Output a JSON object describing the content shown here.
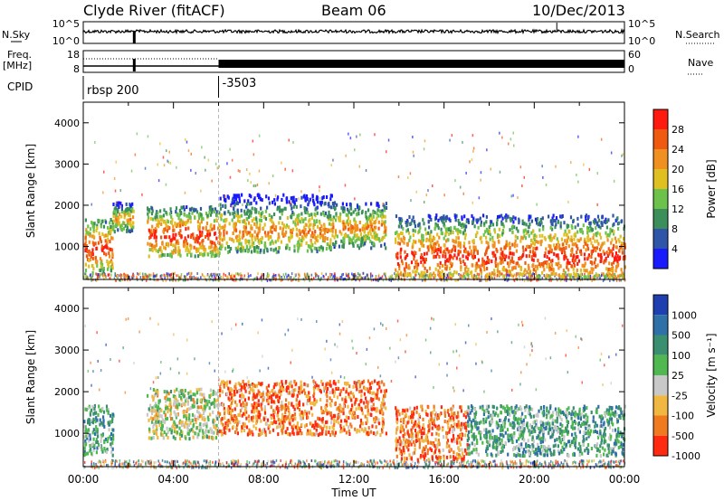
{
  "header": {
    "station": "Clyde River (fitACF)",
    "beam": "Beam 06",
    "date": "10/Dec/2013"
  },
  "top_panels": {
    "nsky_label": "N.Sky",
    "nsearch_label": "N.Search",
    "noise_ticks_left": [
      "10^5",
      "10^0"
    ],
    "noise_ticks_right": [
      "10^5",
      "10^0"
    ],
    "freq_label_1": "Freq.",
    "freq_label_2": "[MHz]",
    "freq_ticks": [
      "18",
      "8"
    ],
    "nave_ticks": [
      "60",
      "0"
    ],
    "nave_label": "Nave",
    "cpid_label": "CPID",
    "cpid_segments": [
      {
        "name": "rbsp 200",
        "start_hour": 0
      },
      {
        "name": "-3503",
        "start_hour": 6
      }
    ]
  },
  "chart_data": [
    {
      "type": "heatmap",
      "title": "",
      "parameter": "Power",
      "ylabel": "Slant Range [km]",
      "ylim": [
        200,
        4500
      ],
      "xlim": [
        0,
        24
      ],
      "y_ticks": [
        "1000",
        "2000",
        "3000",
        "4000"
      ],
      "colorbar": {
        "label": "Power [dB]",
        "tick_labels": [
          "4",
          "8",
          "12",
          "16",
          "20",
          "24",
          "28"
        ],
        "range": [
          0,
          32
        ],
        "colors": [
          "#1a1aff",
          "#2f55a8",
          "#3c8f5a",
          "#6cc24a",
          "#e0c020",
          "#f09020",
          "#f05a10",
          "#ff1a10"
        ]
      },
      "echo_regions": [
        {
          "t0": 0.0,
          "t1": 1.3,
          "r0": 400,
          "r1": 1700,
          "core": 1000,
          "level": "high"
        },
        {
          "t0": 1.3,
          "t1": 2.2,
          "r0": 1400,
          "r1": 2100,
          "core": 1700,
          "level": "mid"
        },
        {
          "t0": 2.8,
          "t1": 6.0,
          "r0": 800,
          "r1": 2000,
          "core": 1300,
          "level": "high"
        },
        {
          "t0": 6.0,
          "t1": 11.0,
          "r0": 900,
          "r1": 2300,
          "core": 1400,
          "level": "mid"
        },
        {
          "t0": 11.0,
          "t1": 13.4,
          "r0": 1000,
          "r1": 2100,
          "core": 1500,
          "level": "mid"
        },
        {
          "t0": 13.8,
          "t1": 24.0,
          "r0": 300,
          "r1": 1800,
          "core": 800,
          "level": "high"
        }
      ]
    },
    {
      "type": "heatmap",
      "title": "",
      "parameter": "Velocity",
      "ylabel": "Slant Range [km]",
      "xlabel": "Time UT",
      "ylim": [
        200,
        4500
      ],
      "xlim": [
        0,
        24
      ],
      "y_ticks": [
        "1000",
        "2000",
        "3000",
        "4000"
      ],
      "x_ticks": [
        "00:00",
        "04:00",
        "08:00",
        "12:00",
        "16:00",
        "20:00",
        "00:00"
      ],
      "colorbar": {
        "label": "Velocity [m s⁻¹]",
        "tick_labels": [
          "1000",
          "500",
          "100",
          "25",
          "-25",
          "-100",
          "-500",
          "-1000"
        ],
        "colors": [
          "#1f3fb0",
          "#2f70a8",
          "#3a8f70",
          "#4fb850",
          "#c8c8c8",
          "#f0b840",
          "#f07a20",
          "#ff2a10"
        ]
      },
      "echo_regions": [
        {
          "t0": 0.0,
          "t1": 1.3,
          "r0": 500,
          "r1": 1700,
          "dominant": "green"
        },
        {
          "t0": 2.8,
          "t1": 6.0,
          "r0": 900,
          "r1": 2100,
          "dominant": "mixed"
        },
        {
          "t0": 6.0,
          "t1": 13.4,
          "r0": 1000,
          "r1": 2300,
          "dominant": "orange"
        },
        {
          "t0": 13.8,
          "t1": 17.0,
          "r0": 400,
          "r1": 1700,
          "dominant": "orange"
        },
        {
          "t0": 17.0,
          "t1": 24.0,
          "r0": 500,
          "r1": 1700,
          "dominant": "green"
        }
      ]
    }
  ]
}
